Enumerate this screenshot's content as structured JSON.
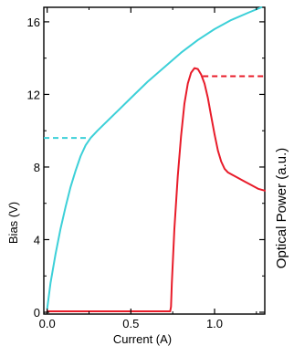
{
  "chart_data": {
    "type": "line",
    "xlabel": "Current (A)",
    "ylabel": "Bias (V)",
    "ylabel_right": "Optical Power (a.u.)",
    "xlim": [
      -0.02,
      1.3
    ],
    "ylim": [
      -0.1,
      16.8
    ],
    "x_ticks": [
      0.0,
      0.5,
      1.0
    ],
    "x_tick_labels": [
      "0.0",
      "0.5",
      "1.0"
    ],
    "y_ticks": [
      0,
      4,
      8,
      12,
      16
    ],
    "y_tick_labels": [
      "0",
      "4",
      "8",
      "12",
      "16"
    ],
    "grid": false,
    "colors": {
      "bias": "#3cd0d8",
      "power": "#e81c2a"
    },
    "series": [
      {
        "axis": "left",
        "values": [
          [
            0.0,
            0.2
          ],
          [
            0.02,
            1.6
          ],
          [
            0.05,
            3.2
          ],
          [
            0.08,
            4.6
          ],
          [
            0.11,
            5.8
          ],
          [
            0.14,
            6.9
          ],
          [
            0.17,
            7.8
          ],
          [
            0.2,
            8.6
          ],
          [
            0.23,
            9.2
          ],
          [
            0.26,
            9.6
          ],
          [
            0.3,
            10.0
          ],
          [
            0.4,
            10.9
          ],
          [
            0.5,
            11.8
          ],
          [
            0.6,
            12.7
          ],
          [
            0.7,
            13.5
          ],
          [
            0.8,
            14.3
          ],
          [
            0.9,
            15.0
          ],
          [
            1.0,
            15.6
          ],
          [
            1.1,
            16.1
          ],
          [
            1.2,
            16.5
          ],
          [
            1.28,
            16.8
          ]
        ]
      },
      {
        "axis": "right",
        "values": [
          [
            0.0,
            0.05
          ],
          [
            0.3,
            0.05
          ],
          [
            0.6,
            0.05
          ],
          [
            0.735,
            0.05
          ],
          [
            0.74,
            0.3
          ],
          [
            0.745,
            1.6
          ],
          [
            0.76,
            4.6
          ],
          [
            0.78,
            7.5
          ],
          [
            0.8,
            9.7
          ],
          [
            0.82,
            11.5
          ],
          [
            0.84,
            12.6
          ],
          [
            0.86,
            13.2
          ],
          [
            0.88,
            13.45
          ],
          [
            0.9,
            13.4
          ],
          [
            0.92,
            13.1
          ],
          [
            0.94,
            12.6
          ],
          [
            0.96,
            11.8
          ],
          [
            0.98,
            10.8
          ],
          [
            1.0,
            9.8
          ],
          [
            1.02,
            8.9
          ],
          [
            1.04,
            8.3
          ],
          [
            1.06,
            7.9
          ],
          [
            1.08,
            7.7
          ],
          [
            1.1,
            7.6
          ],
          [
            1.14,
            7.4
          ],
          [
            1.18,
            7.2
          ],
          [
            1.22,
            7.0
          ],
          [
            1.26,
            6.8
          ],
          [
            1.3,
            6.7
          ]
        ]
      }
    ],
    "annotations": [
      {
        "type": "dashed-segment",
        "color": "#3cd0d8",
        "x": [
          -0.02,
          0.24
        ],
        "y": 9.6
      },
      {
        "type": "dashed-segment",
        "color": "#e81c2a",
        "x": [
          0.93,
          1.3
        ],
        "y": 13.0
      }
    ]
  }
}
